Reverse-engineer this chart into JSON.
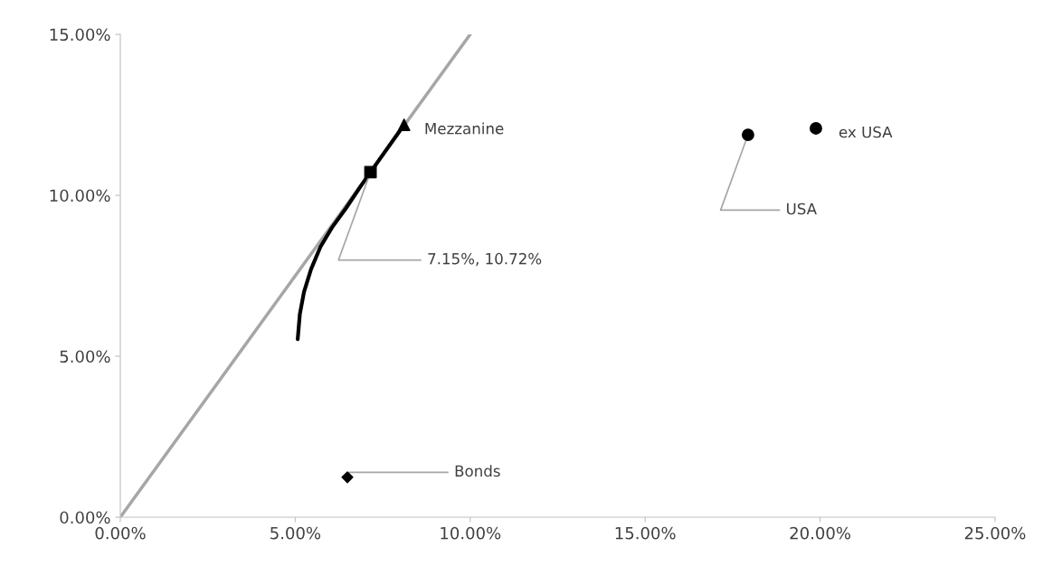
{
  "chart_data": {
    "type": "scatter",
    "xlim": [
      0,
      25
    ],
    "ylim": [
      0,
      15
    ],
    "xticks": [
      {
        "value": 0,
        "label": "0.00%"
      },
      {
        "value": 5,
        "label": "5.00%"
      },
      {
        "value": 10,
        "label": "10.00%"
      },
      {
        "value": 15,
        "label": "15.00%"
      },
      {
        "value": 20,
        "label": "20.00%"
      },
      {
        "value": 25,
        "label": "25.00%"
      }
    ],
    "yticks": [
      {
        "value": 0,
        "label": "0.00%"
      },
      {
        "value": 5,
        "label": "5.00%"
      },
      {
        "value": 10,
        "label": "10.00%"
      },
      {
        "value": 15,
        "label": "15.00%"
      }
    ],
    "grid": false,
    "legend": false,
    "series": [
      {
        "type": "line",
        "color": "#a6a6a6",
        "x": [
          0,
          10.0
        ],
        "values": [
          0,
          15
        ]
      },
      {
        "type": "line",
        "color": "#000000",
        "x": [
          5.07,
          5.13,
          5.25,
          5.45,
          5.72,
          6.05,
          6.45,
          6.85,
          7.15,
          8.11
        ],
        "values": [
          5.53,
          6.3,
          7.0,
          7.7,
          8.4,
          9.0,
          9.6,
          10.25,
          10.72,
          12.19
        ]
      },
      {
        "color": "#000000",
        "marker": "triangle",
        "x": [
          8.11
        ],
        "values": [
          12.19
        ]
      },
      {
        "color": "#000000",
        "marker": "square",
        "x": [
          7.15
        ],
        "values": [
          10.72
        ]
      },
      {
        "color": "#000000",
        "marker": "circle",
        "x": [
          17.94
        ],
        "values": [
          11.88
        ]
      },
      {
        "color": "#000000",
        "marker": "circle",
        "x": [
          19.88
        ],
        "values": [
          12.08
        ]
      },
      {
        "color": "#000000",
        "marker": "diamond",
        "x": [
          6.49
        ],
        "values": [
          1.24
        ]
      }
    ],
    "annotations": [
      {
        "text": "Mezzanine",
        "x": 8.11,
        "y": 12.19
      },
      {
        "text": "7.15%, 10.72%",
        "x": 7.15,
        "y": 10.72
      },
      {
        "text": "USA",
        "x": 17.94,
        "y": 11.88
      },
      {
        "text": "ex USA",
        "x": 19.88,
        "y": 12.08
      },
      {
        "text": "Bonds",
        "x": 6.49,
        "y": 1.24
      }
    ]
  }
}
